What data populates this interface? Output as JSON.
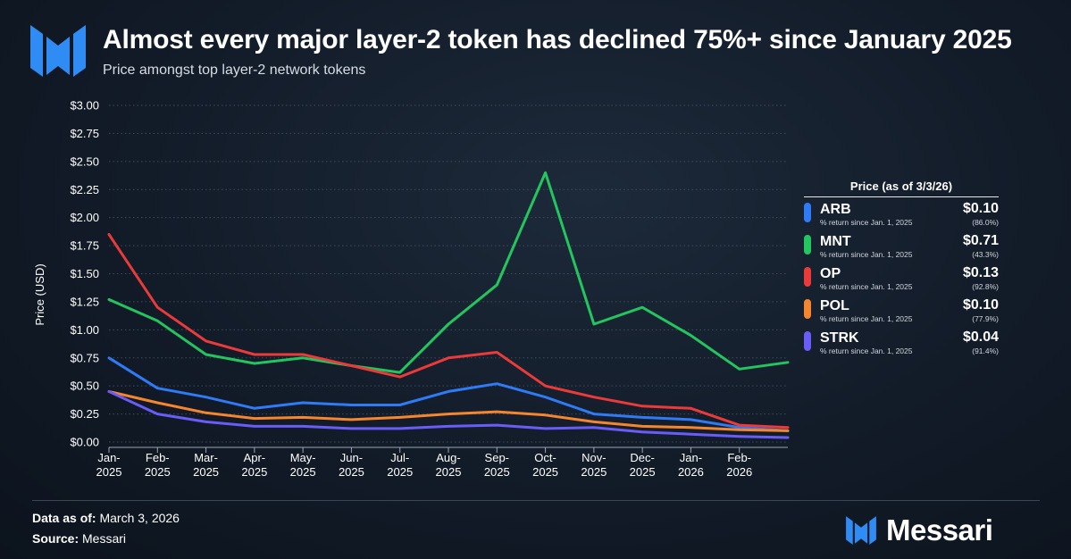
{
  "header": {
    "title": "Almost every major layer-2 token has declined 75%+ since January 2025",
    "subtitle": "Price amongst top layer-2 network tokens"
  },
  "legend": {
    "heading": "Price (as of 3/3/26)",
    "items": [
      {
        "name": "ARB",
        "sub": "% return since Jan. 1, 2025",
        "price": "$0.10",
        "ret": "(86.0%)",
        "color": "#2f7bf6"
      },
      {
        "name": "MNT",
        "sub": "% return since Jan. 1, 2025",
        "price": "$0.71",
        "ret": "(43.3%)",
        "color": "#23c55e"
      },
      {
        "name": "OP",
        "sub": "% return since Jan. 1, 2025",
        "price": "$0.13",
        "ret": "(92.8%)",
        "color": "#ea3a3a"
      },
      {
        "name": "POL",
        "sub": "% return since Jan. 1, 2025",
        "price": "$0.10",
        "ret": "(77.9%)",
        "color": "#f5862e"
      },
      {
        "name": "STRK",
        "sub": "% return since Jan. 1, 2025",
        "price": "$0.04",
        "ret": "(91.4%)",
        "color": "#6a5cf6"
      }
    ]
  },
  "footer": {
    "data_label": "Data as of:",
    "data_value": "March 3, 2026",
    "source_label": "Source:",
    "source_value": "Messari",
    "brand": "Messari"
  },
  "chart_data": {
    "type": "line",
    "ylabel": "Price (USD)",
    "yticks": [
      "$0.00",
      "$0.25",
      "$0.50",
      "$0.75",
      "$1.00",
      "$1.25",
      "$1.50",
      "$1.75",
      "$2.00",
      "$2.25",
      "$2.50",
      "$2.75",
      "$3.00"
    ],
    "ylim": [
      0,
      3
    ],
    "xticks": [
      {
        "top": "Jan-",
        "bottom": "2025"
      },
      {
        "top": "Feb-",
        "bottom": "2025"
      },
      {
        "top": "Mar-",
        "bottom": "2025"
      },
      {
        "top": "Apr-",
        "bottom": "2025"
      },
      {
        "top": "May-",
        "bottom": "2025"
      },
      {
        "top": "Jun-",
        "bottom": "2025"
      },
      {
        "top": "Jul-",
        "bottom": "2025"
      },
      {
        "top": "Aug-",
        "bottom": "2025"
      },
      {
        "top": "Sep-",
        "bottom": "2025"
      },
      {
        "top": "Oct-",
        "bottom": "2025"
      },
      {
        "top": "Nov-",
        "bottom": "2025"
      },
      {
        "top": "Dec-",
        "bottom": "2025"
      },
      {
        "top": "Jan-",
        "bottom": "2026"
      },
      {
        "top": "Feb-",
        "bottom": "2026"
      }
    ],
    "x": [
      "2025-01",
      "2025-02",
      "2025-03",
      "2025-04",
      "2025-05",
      "2025-06",
      "2025-07",
      "2025-08",
      "2025-09",
      "2025-10",
      "2025-11",
      "2025-12",
      "2026-01",
      "2026-02",
      "2026-03"
    ],
    "grid": true,
    "legend_position": "right",
    "series": [
      {
        "name": "ARB",
        "color": "#2f7bf6",
        "values": [
          0.75,
          0.48,
          0.4,
          0.3,
          0.35,
          0.33,
          0.33,
          0.45,
          0.52,
          0.4,
          0.25,
          0.22,
          0.2,
          0.13,
          0.1
        ]
      },
      {
        "name": "MNT",
        "color": "#23c55e",
        "values": [
          1.27,
          1.08,
          0.78,
          0.7,
          0.75,
          0.68,
          0.62,
          1.05,
          1.4,
          2.4,
          1.05,
          1.2,
          0.95,
          0.65,
          0.71
        ]
      },
      {
        "name": "OP",
        "color": "#ea3a3a",
        "values": [
          1.85,
          1.2,
          0.9,
          0.78,
          0.78,
          0.68,
          0.58,
          0.75,
          0.8,
          0.5,
          0.4,
          0.32,
          0.3,
          0.15,
          0.13
        ]
      },
      {
        "name": "POL",
        "color": "#f5862e",
        "values": [
          0.45,
          0.35,
          0.26,
          0.21,
          0.22,
          0.2,
          0.22,
          0.25,
          0.27,
          0.24,
          0.18,
          0.14,
          0.13,
          0.11,
          0.1
        ]
      },
      {
        "name": "STRK",
        "color": "#6a5cf6",
        "values": [
          0.45,
          0.25,
          0.18,
          0.14,
          0.14,
          0.12,
          0.12,
          0.14,
          0.15,
          0.12,
          0.13,
          0.09,
          0.07,
          0.05,
          0.04
        ]
      }
    ]
  }
}
